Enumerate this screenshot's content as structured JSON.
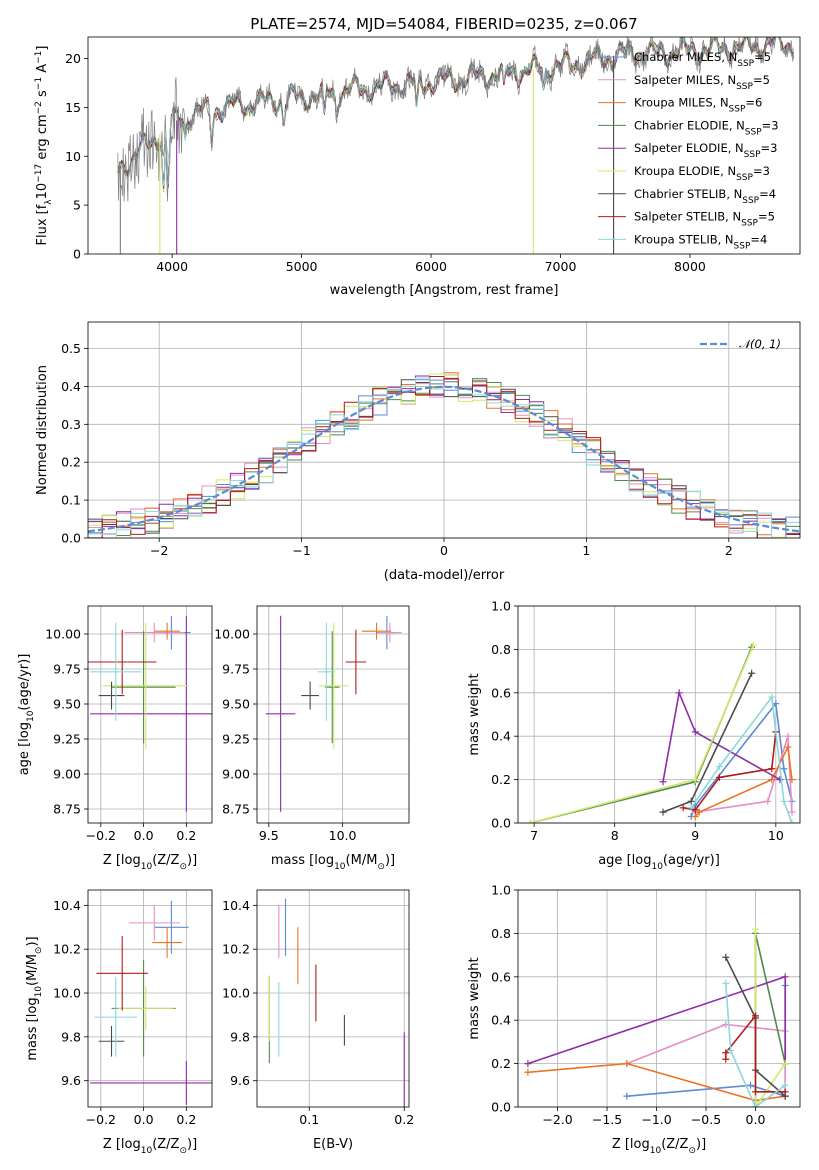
{
  "colors": {
    "chabrier_miles": "#5b8bd6",
    "salpeter_miles": "#e68fc5",
    "kroupa_miles": "#e87524",
    "chabrier_elodie": "#4f8a4f",
    "salpeter_elodie": "#8d2fa8",
    "kroupa_elodie": "#cfe86a",
    "chabrier_stelib": "#4a4a4a",
    "salpeter_stelib": "#b01c1c",
    "kroupa_stelib": "#8ad8dc",
    "data": "#7f7f7f"
  },
  "series_order": [
    "chabrier_miles",
    "salpeter_miles",
    "kroupa_miles",
    "chabrier_elodie",
    "salpeter_elodie",
    "kroupa_elodie",
    "chabrier_stelib",
    "salpeter_stelib",
    "kroupa_stelib"
  ],
  "chart_data": [
    {
      "id": "spectrum",
      "type": "line",
      "title": "PLATE=2574, MJD=54084, FIBERID=0235, z=0.067",
      "xlabel": "wavelength [Angstrom, rest frame]",
      "ylabel_main": "Flux [f",
      "ylabel_sub": "λ",
      "ylabel_rest": "10",
      "ylabel_exp1": "−17",
      "ylabel_mid": " erg cm",
      "ylabel_exp2": "−2",
      "ylabel_mid2": " s",
      "ylabel_exp3": "−1",
      "ylabel_end": " A",
      "ylabel_exp4": "−1",
      "ylabel_close": "]",
      "xlim": [
        3350,
        8850
      ],
      "ylim": [
        0,
        22.2
      ],
      "xticks": [
        4000,
        5000,
        6000,
        7000,
        8000
      ],
      "yticks": [
        0,
        5,
        10,
        15,
        20
      ],
      "grid": false,
      "legend_position": "right",
      "continuum": [
        [
          3580,
          8.5
        ],
        [
          3700,
          10
        ],
        [
          3850,
          11.5
        ],
        [
          4000,
          13.5
        ],
        [
          4200,
          14.5
        ],
        [
          4500,
          15.2
        ],
        [
          5000,
          16
        ],
        [
          5500,
          17
        ],
        [
          6000,
          17.6
        ],
        [
          6500,
          18.4
        ],
        [
          7000,
          19.2
        ],
        [
          7500,
          20.5
        ],
        [
          8000,
          20.8
        ],
        [
          8500,
          21.3
        ],
        [
          8800,
          21.6
        ]
      ],
      "features": [
        [
          3934,
          -6
        ],
        [
          3969,
          -6
        ],
        [
          4102,
          -2
        ],
        [
          4304,
          -3
        ],
        [
          4861,
          -2
        ],
        [
          5175,
          -3
        ],
        [
          5270,
          -1.5
        ],
        [
          5890,
          -3
        ],
        [
          6563,
          -2
        ],
        [
          6870,
          -2
        ]
      ],
      "spikes": [
        [
          6790,
          0,
          "kroupa_elodie"
        ],
        [
          7410,
          0,
          "chabrier_stelib"
        ],
        [
          3600,
          0,
          "data"
        ],
        [
          3905,
          0,
          "kroupa_elodie"
        ],
        [
          4035,
          0,
          "salpeter_elodie"
        ]
      ],
      "legend": [
        {
          "key": "chabrier_miles",
          "text": "Chabrier MILES, N",
          "sub": "SSP",
          "val": "=5"
        },
        {
          "key": "salpeter_miles",
          "text": "Salpeter MILES, N",
          "sub": "SSP",
          "val": "=5"
        },
        {
          "key": "kroupa_miles",
          "text": "Kroupa MILES, N",
          "sub": "SSP",
          "val": "=6"
        },
        {
          "key": "chabrier_elodie",
          "text": "Chabrier ELODIE, N",
          "sub": "SSP",
          "val": "=3"
        },
        {
          "key": "salpeter_elodie",
          "text": "Salpeter ELODIE, N",
          "sub": "SSP",
          "val": "=3"
        },
        {
          "key": "kroupa_elodie",
          "text": "Kroupa ELODIE, N",
          "sub": "SSP",
          "val": "=3"
        },
        {
          "key": "chabrier_stelib",
          "text": "Chabrier STELIB, N",
          "sub": "SSP",
          "val": "=4"
        },
        {
          "key": "salpeter_stelib",
          "text": "Salpeter STELIB, N",
          "sub": "SSP",
          "val": "=5"
        },
        {
          "key": "kroupa_stelib",
          "text": "Kroupa STELIB, N",
          "sub": "SSP",
          "val": "=4"
        }
      ]
    },
    {
      "id": "residuals",
      "type": "line",
      "xlabel": "(data-model)/error",
      "ylabel": "Normed distribution",
      "xlim": [
        -2.5,
        2.5
      ],
      "ylim": [
        0,
        0.57
      ],
      "xticks": [
        -2,
        -1,
        0,
        1,
        2
      ],
      "xtick_labels": [
        "−2",
        "−1",
        "0",
        "1",
        "2"
      ],
      "yticks": [
        0.0,
        0.1,
        0.2,
        0.3,
        0.4,
        0.5
      ],
      "ytick_labels": [
        "0.0",
        "0.1",
        "0.2",
        "0.3",
        "0.4",
        "0.5"
      ],
      "grid": true,
      "bin_width": 0.1,
      "gaussian": {
        "name": "𝒩(0, 1)",
        "mean": 0,
        "sigma": 1,
        "color": "#5b8bd6"
      },
      "legend_position": "top-right"
    },
    {
      "id": "age_vs_Z",
      "type": "scatter",
      "xlabel": "Z [log",
      "xlabel_sub": "10",
      "xlabel_rest": "(Z/Z",
      "xlabel_sub2": "⊙",
      "xlabel_end": ")]",
      "ylabel": "age  [log",
      "ylabel_sub": "10",
      "ylabel_rest": "(age/yr)]",
      "xlim": [
        -0.26,
        0.32
      ],
      "ylim": [
        8.65,
        10.2
      ],
      "xticks": [
        -0.2,
        0.0,
        0.2
      ],
      "xtick_labels": [
        "−0.2",
        "0.0",
        "0.2"
      ],
      "yticks": [
        8.75,
        9.0,
        9.25,
        9.5,
        9.75,
        10.0
      ],
      "ytick_labels": [
        "8.75",
        "9.00",
        "9.25",
        "9.50",
        "9.75",
        "10.00"
      ],
      "grid": true,
      "points": [
        {
          "key": "chabrier_miles",
          "x": 0.13,
          "y": 10.01,
          "xerr": 0.09,
          "yerr": 0.12
        },
        {
          "key": "salpeter_miles",
          "x": 0.05,
          "y": 10.01,
          "xerr": 0.14,
          "yerr": 0.07
        },
        {
          "key": "kroupa_miles",
          "x": 0.11,
          "y": 10.02,
          "xerr": 0.06,
          "yerr": 0.06
        },
        {
          "key": "chabrier_elodie",
          "x": 0.0,
          "y": 9.62,
          "xerr": 0.15,
          "yerr": 0.4
        },
        {
          "key": "salpeter_elodie",
          "x": 0.2,
          "y": 9.43,
          "xerr": 0.45,
          "yerr": 0.7
        },
        {
          "key": "kroupa_elodie",
          "x": 0.01,
          "y": 9.63,
          "xerr": 0.2,
          "yerr": 0.45
        },
        {
          "key": "chabrier_stelib",
          "x": -0.15,
          "y": 9.56,
          "xerr": 0.06,
          "yerr": 0.1
        },
        {
          "key": "salpeter_stelib",
          "x": -0.1,
          "y": 9.8,
          "xerr": 0.16,
          "yerr": 0.23
        },
        {
          "key": "kroupa_stelib",
          "x": -0.13,
          "y": 9.73,
          "xerr": 0.12,
          "yerr": 0.35
        }
      ]
    },
    {
      "id": "age_vs_mass",
      "type": "scatter",
      "xlabel": "mass [log",
      "xlabel_sub": "10",
      "xlabel_rest": "(M/M",
      "xlabel_sub2": "⊙",
      "xlabel_end": ")]",
      "xlim": [
        9.42,
        10.45
      ],
      "ylim": [
        8.65,
        10.2
      ],
      "xticks": [
        9.5,
        10.0
      ],
      "xtick_labels": [
        "9.5",
        "10.0"
      ],
      "yticks": [
        8.75,
        9.0,
        9.25,
        9.5,
        9.75,
        10.0
      ],
      "ytick_labels": [
        "8.75",
        "9.00",
        "9.25",
        "9.50",
        "9.75",
        "10.00"
      ],
      "grid": true,
      "points": [
        {
          "key": "chabrier_miles",
          "x": 10.3,
          "y": 10.01,
          "xerr": 0.07,
          "yerr": 0.12
        },
        {
          "key": "salpeter_miles",
          "x": 10.32,
          "y": 10.01,
          "xerr": 0.08,
          "yerr": 0.07
        },
        {
          "key": "kroupa_miles",
          "x": 10.23,
          "y": 10.02,
          "xerr": 0.1,
          "yerr": 0.06
        },
        {
          "key": "chabrier_elodie",
          "x": 9.93,
          "y": 9.62,
          "xerr": 0.05,
          "yerr": 0.4
        },
        {
          "key": "salpeter_elodie",
          "x": 9.58,
          "y": 9.43,
          "xerr": 0.1,
          "yerr": 0.7
        },
        {
          "key": "kroupa_elodie",
          "x": 9.94,
          "y": 9.63,
          "xerr": 0.1,
          "yerr": 0.45
        },
        {
          "key": "chabrier_stelib",
          "x": 9.78,
          "y": 9.56,
          "xerr": 0.06,
          "yerr": 0.1
        },
        {
          "key": "salpeter_stelib",
          "x": 10.09,
          "y": 9.8,
          "xerr": 0.07,
          "yerr": 0.23
        },
        {
          "key": "kroupa_stelib",
          "x": 9.89,
          "y": 9.73,
          "xerr": 0.06,
          "yerr": 0.35
        }
      ]
    },
    {
      "id": "mass_weight_vs_age",
      "type": "line",
      "xlabel": "age  [log",
      "xlabel_sub": "10",
      "xlabel_rest": "(age/yr)]",
      "ylabel": "mass weight",
      "xlim": [
        6.8,
        10.3
      ],
      "ylim": [
        0,
        1
      ],
      "xticks": [
        7,
        8,
        9,
        10
      ],
      "xtick_labels": [
        "7",
        "8",
        "9",
        "10"
      ],
      "yticks": [
        0.0,
        0.2,
        0.4,
        0.6,
        0.8,
        1.0
      ],
      "ytick_labels": [
        "0.0",
        "0.2",
        "0.4",
        "0.6",
        "0.8",
        "1.0"
      ],
      "grid": true,
      "series": [
        {
          "key": "chabrier_miles",
          "x": [
            8.95,
            9.0,
            10.0,
            10.1,
            10.2
          ],
          "y": [
            0.03,
            0.08,
            0.55,
            0.25,
            0.1
          ]
        },
        {
          "key": "salpeter_miles",
          "x": [
            9.0,
            9.9,
            10.15,
            10.2
          ],
          "y": [
            0.05,
            0.1,
            0.4,
            0.05
          ]
        },
        {
          "key": "kroupa_miles",
          "x": [
            9.0,
            9.05,
            9.95,
            10.15,
            10.2
          ],
          "y": [
            0.03,
            0.05,
            0.2,
            0.35,
            0.2
          ]
        },
        {
          "key": "chabrier_elodie",
          "x": [
            6.95,
            9.0,
            9.7
          ],
          "y": [
            0.0,
            0.19,
            0.81
          ]
        },
        {
          "key": "salpeter_elodie",
          "x": [
            8.6,
            8.8,
            9.0,
            10.05
          ],
          "y": [
            0.19,
            0.6,
            0.42,
            0.2
          ]
        },
        {
          "key": "kroupa_elodie",
          "x": [
            6.95,
            9.0,
            9.72
          ],
          "y": [
            0.0,
            0.2,
            0.82
          ]
        },
        {
          "key": "chabrier_stelib",
          "x": [
            8.6,
            8.95,
            9.7
          ],
          "y": [
            0.05,
            0.1,
            0.69
          ]
        },
        {
          "key": "salpeter_stelib",
          "x": [
            8.85,
            9.0,
            9.3,
            9.95,
            10.0
          ],
          "y": [
            0.07,
            0.06,
            0.21,
            0.25,
            0.42
          ]
        },
        {
          "key": "kroupa_stelib",
          "x": [
            8.95,
            9.3,
            9.95,
            10.1,
            10.2
          ],
          "y": [
            0.07,
            0.26,
            0.58,
            0.1,
            0.0
          ]
        }
      ]
    },
    {
      "id": "mass_vs_Z",
      "type": "scatter",
      "xlabel": "Z [log",
      "xlabel_sub": "10",
      "xlabel_rest": "(Z/Z",
      "xlabel_sub2": "⊙",
      "xlabel_end": ")]",
      "ylabel": "mass [log",
      "ylabel_sub": "10",
      "ylabel_rest": "(M/M",
      "ylabel_sub2": "⊙",
      "ylabel_end": ")]",
      "xlim": [
        -0.26,
        0.32
      ],
      "ylim": [
        9.48,
        10.47
      ],
      "xticks": [
        -0.2,
        0.0,
        0.2
      ],
      "xtick_labels": [
        "−0.2",
        "0.0",
        "0.2"
      ],
      "yticks": [
        9.6,
        9.8,
        10.0,
        10.2,
        10.4
      ],
      "ytick_labels": [
        "9.6",
        "9.8",
        "10.0",
        "10.2",
        "10.4"
      ],
      "grid": true,
      "points": [
        {
          "key": "chabrier_miles",
          "x": 0.13,
          "y": 10.3,
          "xerr": 0.08,
          "yerr": 0.12
        },
        {
          "key": "salpeter_miles",
          "x": 0.05,
          "y": 10.32,
          "xerr": 0.12,
          "yerr": 0.08
        },
        {
          "key": "kroupa_miles",
          "x": 0.11,
          "y": 10.23,
          "xerr": 0.07,
          "yerr": 0.07
        },
        {
          "key": "chabrier_elodie",
          "x": 0.0,
          "y": 9.93,
          "xerr": 0.15,
          "yerr": 0.22
        },
        {
          "key": "salpeter_elodie",
          "x": 0.2,
          "y": 9.59,
          "xerr": 0.45,
          "yerr": 0.1
        },
        {
          "key": "kroupa_elodie",
          "x": 0.01,
          "y": 9.93,
          "xerr": 0.13,
          "yerr": 0.1
        },
        {
          "key": "chabrier_stelib",
          "x": -0.15,
          "y": 9.78,
          "xerr": 0.06,
          "yerr": 0.07
        },
        {
          "key": "salpeter_stelib",
          "x": -0.1,
          "y": 10.09,
          "xerr": 0.12,
          "yerr": 0.17
        },
        {
          "key": "kroupa_stelib",
          "x": -0.13,
          "y": 9.89,
          "xerr": 0.1,
          "yerr": 0.18
        }
      ]
    },
    {
      "id": "mass_vs_EBV",
      "type": "scatter",
      "xlabel": "E(B-V)",
      "xlim": [
        0.045,
        0.205
      ],
      "ylim": [
        9.48,
        10.47
      ],
      "xticks": [
        0.1,
        0.2
      ],
      "xtick_labels": [
        "0.1",
        "0.2"
      ],
      "yticks": [
        9.6,
        9.8,
        10.0,
        10.2,
        10.4
      ],
      "ytick_labels": [
        "9.6",
        "9.8",
        "10.0",
        "10.2",
        "10.4"
      ],
      "grid": true,
      "points": [
        {
          "key": "chabrier_miles",
          "x": 0.075,
          "y": 10.3,
          "xerr": 0,
          "yerr": 0.13
        },
        {
          "key": "salpeter_miles",
          "x": 0.068,
          "y": 10.28,
          "xerr": 0,
          "yerr": 0.12
        },
        {
          "key": "kroupa_miles",
          "x": 0.088,
          "y": 10.17,
          "xerr": 0,
          "yerr": 0.13
        },
        {
          "key": "chabrier_elodie",
          "x": 0.058,
          "y": 9.88,
          "xerr": 0,
          "yerr": 0.2
        },
        {
          "key": "salpeter_elodie",
          "x": 0.2,
          "y": 9.65,
          "xerr": 0,
          "yerr": 0.17
        },
        {
          "key": "kroupa_elodie",
          "x": 0.058,
          "y": 9.93,
          "xerr": 0,
          "yerr": 0.15
        },
        {
          "key": "chabrier_stelib",
          "x": 0.137,
          "y": 9.83,
          "xerr": 0,
          "yerr": 0.07
        },
        {
          "key": "salpeter_stelib",
          "x": 0.107,
          "y": 10.0,
          "xerr": 0,
          "yerr": 0.13
        },
        {
          "key": "kroupa_stelib",
          "x": 0.068,
          "y": 9.88,
          "xerr": 0,
          "yerr": 0.17
        }
      ]
    },
    {
      "id": "mass_weight_vs_Z",
      "type": "line",
      "xlabel": "Z [log",
      "xlabel_sub": "10",
      "xlabel_rest": "(Z/Z",
      "xlabel_sub2": "⊙",
      "xlabel_end": ")]",
      "ylabel": "mass weight",
      "xlim": [
        -2.4,
        0.45
      ],
      "ylim": [
        0,
        1
      ],
      "xticks": [
        -2.0,
        -1.5,
        -1.0,
        -0.5,
        0.0
      ],
      "xtick_labels": [
        "−2.0",
        "−1.5",
        "−1.0",
        "−0.5",
        "0.0"
      ],
      "yticks": [
        0.0,
        0.2,
        0.4,
        0.6,
        0.8,
        1.0
      ],
      "ytick_labels": [
        "0.0",
        "0.2",
        "0.4",
        "0.6",
        "0.8",
        "1.0"
      ],
      "grid": true,
      "series": [
        {
          "key": "chabrier_miles",
          "x": [
            -1.3,
            -0.05,
            0.3,
            0.3
          ],
          "y": [
            0.05,
            0.1,
            0.05,
            0.56
          ]
        },
        {
          "key": "salpeter_miles",
          "x": [
            -1.3,
            -0.3,
            0.3,
            0.3
          ],
          "y": [
            0.2,
            0.38,
            0.35,
            0.05
          ]
        },
        {
          "key": "kroupa_miles",
          "x": [
            -2.3,
            -1.3,
            0.0,
            0.3
          ],
          "y": [
            0.16,
            0.2,
            0.03,
            0.05
          ]
        },
        {
          "key": "chabrier_elodie",
          "x": [
            0.0,
            0.0,
            0.3
          ],
          "y": [
            0.0,
            0.8,
            0.2
          ]
        },
        {
          "key": "salpeter_elodie",
          "x": [
            -2.3,
            0.3,
            0.3
          ],
          "y": [
            0.2,
            0.6,
            0.2
          ]
        },
        {
          "key": "kroupa_elodie",
          "x": [
            0.0,
            0.0,
            0.3
          ],
          "y": [
            0.82,
            0.0,
            0.2
          ]
        },
        {
          "key": "chabrier_stelib",
          "x": [
            -0.3,
            0.0,
            0.0,
            0.3
          ],
          "y": [
            0.69,
            0.41,
            0.17,
            0.05
          ]
        },
        {
          "key": "salpeter_stelib",
          "x": [
            -0.3,
            -0.3,
            0.0,
            0.0,
            0.3
          ],
          "y": [
            0.22,
            0.25,
            0.42,
            0.07,
            0.07
          ]
        },
        {
          "key": "kroupa_stelib",
          "x": [
            -0.3,
            -0.25,
            0.0,
            0.3
          ],
          "y": [
            0.57,
            0.26,
            0.0,
            0.1
          ]
        }
      ]
    }
  ]
}
